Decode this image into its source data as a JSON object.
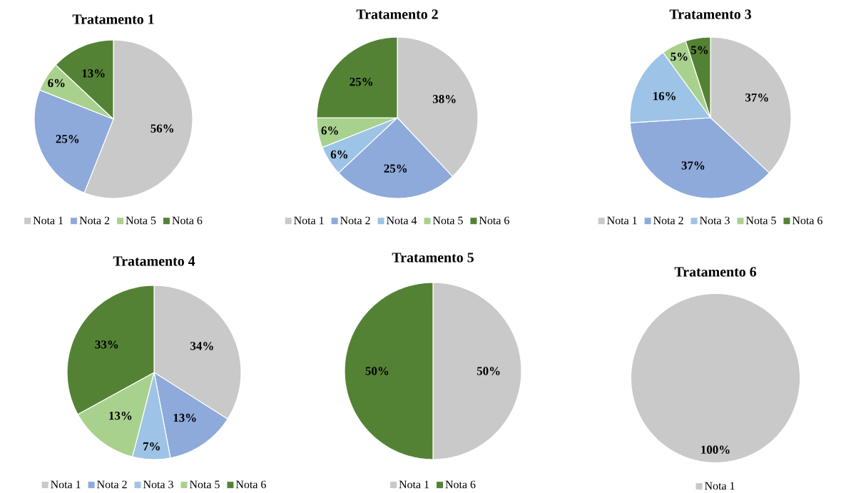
{
  "chart_data": [
    {
      "type": "pie",
      "title": "Tratamento  1",
      "categories": [
        "Nota 1",
        "Nota 2",
        "Nota 5",
        "Nota 6"
      ],
      "values": [
        56,
        25,
        6,
        13
      ],
      "colors": [
        "#c9c9c9",
        "#8eaadb",
        "#a9d18e",
        "#548235"
      ],
      "value_labels": [
        "56%",
        "25%",
        "6%",
        "13%"
      ],
      "legend": "bottom"
    },
    {
      "type": "pie",
      "title": "Tratamento  2",
      "categories": [
        "Nota 1",
        "Nota 2",
        "Nota 4",
        "Nota 5",
        "Nota 6"
      ],
      "values": [
        38,
        25,
        6,
        6,
        25
      ],
      "colors": [
        "#c9c9c9",
        "#8eaadb",
        "#9dc3e6",
        "#a9d18e",
        "#548235"
      ],
      "value_labels": [
        "38%",
        "25%",
        "6%",
        "6%",
        "25%"
      ],
      "legend": "bottom"
    },
    {
      "type": "pie",
      "title": "Tratamento  3",
      "categories": [
        "Nota 1",
        "Nota 2",
        "Nota 3",
        "Nota 5",
        "Nota 6"
      ],
      "values": [
        37,
        37,
        16,
        5,
        5
      ],
      "colors": [
        "#c9c9c9",
        "#8eaadb",
        "#9dc3e6",
        "#a9d18e",
        "#548235"
      ],
      "value_labels": [
        "37%",
        "37%",
        "16%",
        "5%",
        "5%"
      ],
      "legend": "bottom"
    },
    {
      "type": "pie",
      "title": "Tratamento  4",
      "categories": [
        "Nota 1",
        "Nota 2",
        "Nota 3",
        "Nota 5",
        "Nota 6"
      ],
      "values": [
        34,
        13,
        7,
        13,
        33
      ],
      "colors": [
        "#c9c9c9",
        "#8eaadb",
        "#9dc3e6",
        "#a9d18e",
        "#548235"
      ],
      "value_labels": [
        "34%",
        "13%",
        "7%",
        "13%",
        "33%"
      ],
      "legend": "bottom"
    },
    {
      "type": "pie",
      "title": "Tratamento  5",
      "categories": [
        "Nota 1",
        "Nota 6"
      ],
      "values": [
        50,
        50
      ],
      "colors": [
        "#c9c9c9",
        "#548235"
      ],
      "value_labels": [
        "50%",
        "50%"
      ],
      "legend": "bottom"
    },
    {
      "type": "pie",
      "title": "Tratamento  6",
      "categories": [
        "Nota 1"
      ],
      "values": [
        100
      ],
      "colors": [
        "#c9c9c9"
      ],
      "value_labels": [
        "100%"
      ],
      "legend": "bottom"
    }
  ]
}
